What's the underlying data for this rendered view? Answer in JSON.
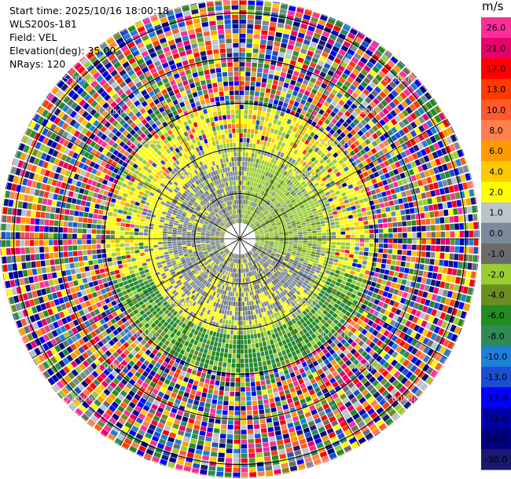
{
  "header": {
    "start_time": "Start time: 2025/10/16 18:00:18",
    "station": "WLS200s-181",
    "field": "Field: VEL",
    "elevation": "Elevation(deg): 35.00",
    "nrays": "NRays: 120"
  },
  "colorbar": {
    "unit": "m/s",
    "bins": [
      {
        "label": "26.0",
        "color": "#ff2d9b"
      },
      {
        "label": "21.0",
        "color": "#e8006b"
      },
      {
        "label": "17.0",
        "color": "#ff0000"
      },
      {
        "label": "13.0",
        "color": "#ff3a00"
      },
      {
        "label": "10.0",
        "color": "#ff5a2a"
      },
      {
        "label": "8.0",
        "color": "#ff7f50"
      },
      {
        "label": "6.0",
        "color": "#ff9a00"
      },
      {
        "label": "4.0",
        "color": "#ffc800"
      },
      {
        "label": "2.0",
        "color": "#ffff00"
      },
      {
        "label": "1.0",
        "color": "#b9c4cc"
      },
      {
        "label": "0.0",
        "color": "#7a8a9a"
      },
      {
        "label": "-1.0",
        "color": "#6b6b6b"
      },
      {
        "label": "-2.0",
        "color": "#9acd32"
      },
      {
        "label": "-4.0",
        "color": "#6b8e23"
      },
      {
        "label": "-6.0",
        "color": "#228b22"
      },
      {
        "label": "-8.0",
        "color": "#2e8b57"
      },
      {
        "label": "-10.0",
        "color": "#1e7fd8"
      },
      {
        "label": "-13.0",
        "color": "#1a4fd0"
      },
      {
        "label": "-17.0",
        "color": "#0000ff"
      },
      {
        "label": "-21.0",
        "color": "#0000a8"
      },
      {
        "label": "-26.0",
        "color": "#000080"
      },
      {
        "label": "-30.0",
        "color": "#191970"
      }
    ]
  },
  "chart_data": {
    "type": "heatmap",
    "projection": "PPI (polar)",
    "field": "VEL",
    "unit": "m/s",
    "range_rings": [
      {
        "label": "1.00km",
        "range_km": 1
      },
      {
        "label": "2.00km",
        "range_km": 2
      },
      {
        "label": "3.00km",
        "range_km": 3
      },
      {
        "label": "4.00km",
        "range_km": 4
      },
      {
        "label": "5.00km",
        "range_km": 5
      }
    ],
    "max_range_km": 5.3,
    "spoke_angles_deg": [
      0,
      30,
      60,
      90,
      120,
      150,
      180,
      210,
      240,
      270,
      300,
      330
    ],
    "colorbar_ticks": [
      26.0,
      21.0,
      17.0,
      13.0,
      10.0,
      8.0,
      6.0,
      4.0,
      2.0,
      1.0,
      0.0,
      -1.0,
      -2.0,
      -4.0,
      -6.0,
      -8.0,
      -10.0,
      -13.0,
      -17.0,
      -21.0,
      -26.0,
      -30.0
    ],
    "description": "Radial velocity field; coherent near-zero / weak flow within ~2.5 km (grey, green, yellow), noisy speckle beyond ~3 km"
  }
}
